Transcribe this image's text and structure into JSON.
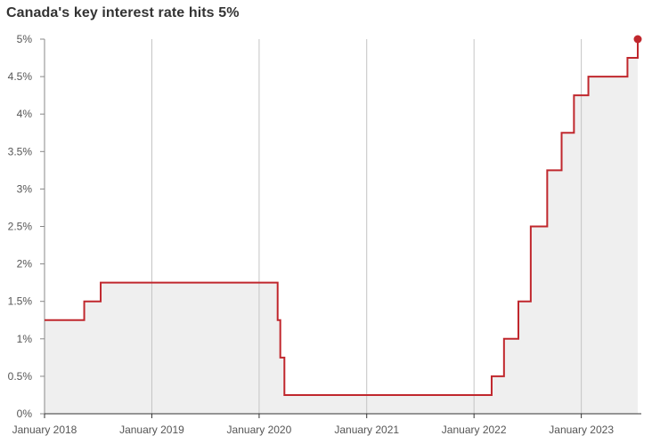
{
  "chart_data": {
    "type": "line",
    "title": "Canada's key interest rate hits 5%",
    "step": true,
    "area_fill": true,
    "y_unit": "%",
    "ylim": [
      0,
      5
    ],
    "y_ticks": [
      0,
      0.5,
      1,
      1.5,
      2,
      2.5,
      3,
      3.5,
      4,
      4.5,
      5
    ],
    "y_tick_labels": [
      "0%",
      "0.5%",
      "1%",
      "1.5%",
      "2%",
      "2.5%",
      "3%",
      "3.5%",
      "4%",
      "4.5%",
      "5%"
    ],
    "xlim": [
      "2018-01-01",
      "2023-07-12"
    ],
    "x_ticks": [
      "2018-01-01",
      "2019-01-01",
      "2020-01-01",
      "2021-01-01",
      "2022-01-01",
      "2023-01-01"
    ],
    "x_tick_labels": [
      "January 2018",
      "January 2019",
      "January 2020",
      "January 2021",
      "January 2022",
      "January 2023"
    ],
    "grid": "vertical",
    "series": [
      {
        "color": "#c0272d",
        "fill_color": "#efefef",
        "points": [
          {
            "x": "2018-01-01",
            "y": 1.25
          },
          {
            "x": "2018-05-16",
            "y": 1.5
          },
          {
            "x": "2018-07-11",
            "y": 1.75
          },
          {
            "x": "2020-03-04",
            "y": 1.25
          },
          {
            "x": "2020-03-13",
            "y": 0.75
          },
          {
            "x": "2020-03-27",
            "y": 0.25
          },
          {
            "x": "2022-03-02",
            "y": 0.5
          },
          {
            "x": "2022-04-13",
            "y": 1.0
          },
          {
            "x": "2022-06-01",
            "y": 1.5
          },
          {
            "x": "2022-07-13",
            "y": 2.5
          },
          {
            "x": "2022-09-07",
            "y": 3.25
          },
          {
            "x": "2022-10-26",
            "y": 3.75
          },
          {
            "x": "2022-12-07",
            "y": 4.25
          },
          {
            "x": "2023-01-25",
            "y": 4.5
          },
          {
            "x": "2023-06-07",
            "y": 4.75
          },
          {
            "x": "2023-07-12",
            "y": 5.0
          }
        ],
        "end_marker": true
      }
    ]
  }
}
